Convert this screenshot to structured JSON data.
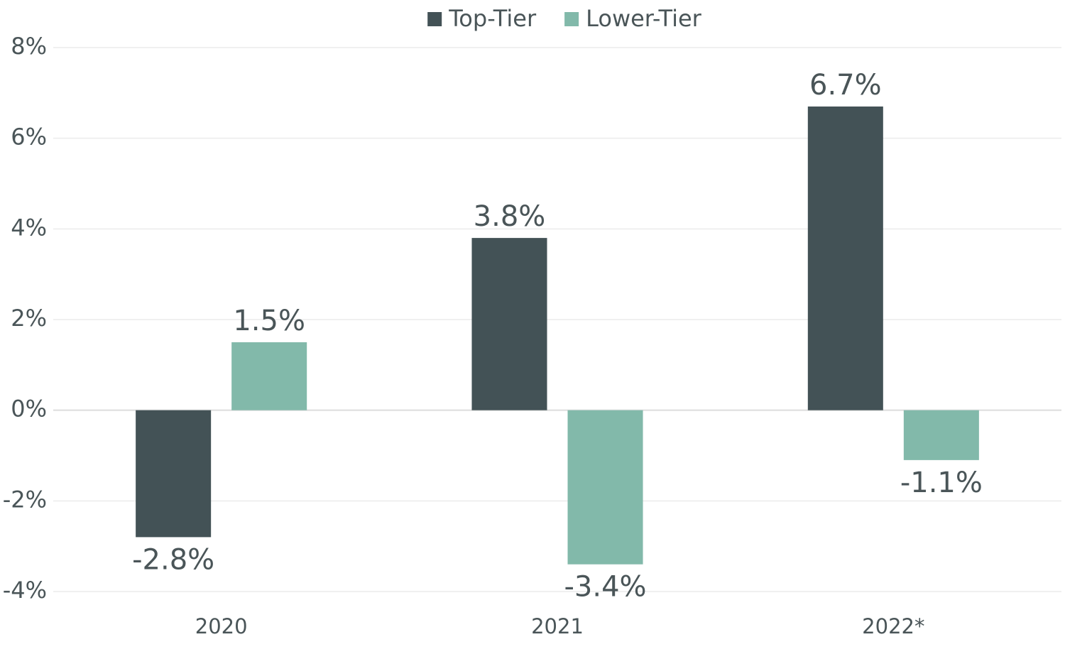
{
  "chart_data": {
    "type": "bar",
    "categories": [
      "2020",
      "2021",
      "2022*"
    ],
    "series": [
      {
        "name": "Top-Tier",
        "color": "#435256",
        "values": [
          -2.8,
          3.8,
          6.7
        ],
        "value_labels": [
          "-2.8%",
          "3.8%",
          "6.7%"
        ]
      },
      {
        "name": "Lower-Tier",
        "color": "#82b9aa",
        "values": [
          1.5,
          -3.4,
          -1.1
        ],
        "value_labels": [
          "1.5%",
          "-3.4%",
          "-1.1%"
        ]
      }
    ],
    "ylim": [
      -4,
      8
    ],
    "yticks": [
      {
        "value": -4,
        "label": "-4%"
      },
      {
        "value": -2,
        "label": "-2%"
      },
      {
        "value": 0,
        "label": "0%"
      },
      {
        "value": 2,
        "label": "2%"
      },
      {
        "value": 4,
        "label": "4%"
      },
      {
        "value": 6,
        "label": "6%"
      },
      {
        "value": 8,
        "label": "8%"
      }
    ],
    "grid": true,
    "legend": "top"
  }
}
